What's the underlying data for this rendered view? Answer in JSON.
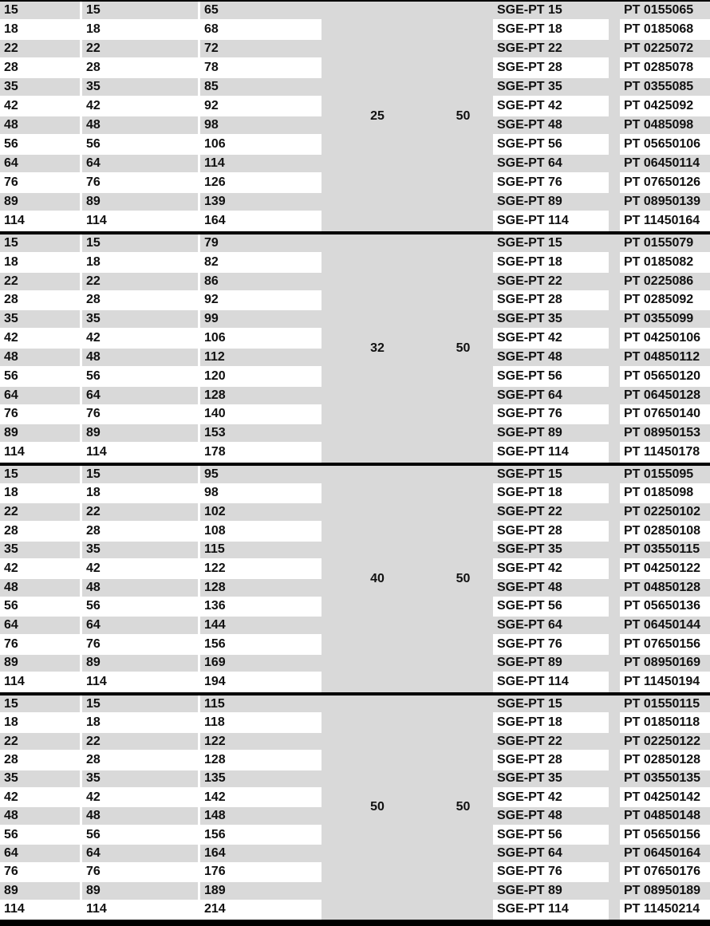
{
  "colors": {
    "row_gray": "#d9d9d9",
    "row_white": "#ffffff",
    "divider_black": "#000000",
    "text": "#111111"
  },
  "table": {
    "blocks": [
      {
        "shared_values": {
          "v1": "25",
          "v2": "50"
        },
        "rows": [
          {
            "c1": "15",
            "c2": "15",
            "c3": "65",
            "name": "SGE-PT 15",
            "code": "PT 0155065"
          },
          {
            "c1": "18",
            "c2": "18",
            "c3": "68",
            "name": "SGE-PT 18",
            "code": "PT 0185068"
          },
          {
            "c1": "22",
            "c2": "22",
            "c3": "72",
            "name": "SGE-PT 22",
            "code": "PT 0225072"
          },
          {
            "c1": "28",
            "c2": "28",
            "c3": "78",
            "name": "SGE-PT 28",
            "code": "PT 0285078"
          },
          {
            "c1": "35",
            "c2": "35",
            "c3": "85",
            "name": "SGE-PT 35",
            "code": "PT 0355085"
          },
          {
            "c1": "42",
            "c2": "42",
            "c3": "92",
            "name": "SGE-PT 42",
            "code": "PT 0425092"
          },
          {
            "c1": "48",
            "c2": "48",
            "c3": "98",
            "name": "SGE-PT 48",
            "code": "PT 0485098"
          },
          {
            "c1": "56",
            "c2": "56",
            "c3": "106",
            "name": "SGE-PT 56",
            "code": "PT 05650106"
          },
          {
            "c1": "64",
            "c2": "64",
            "c3": "114",
            "name": "SGE-PT 64",
            "code": "PT 06450114"
          },
          {
            "c1": "76",
            "c2": "76",
            "c3": "126",
            "name": "SGE-PT 76",
            "code": "PT 07650126"
          },
          {
            "c1": "89",
            "c2": "89",
            "c3": "139",
            "name": "SGE-PT 89",
            "code": "PT 08950139"
          },
          {
            "c1": "114",
            "c2": "114",
            "c3": "164",
            "name": "SGE-PT 114",
            "code": "PT 11450164"
          }
        ]
      },
      {
        "shared_values": {
          "v1": "32",
          "v2": "50"
        },
        "rows": [
          {
            "c1": "15",
            "c2": "15",
            "c3": "79",
            "name": "SGE-PT 15",
            "code": "PT 0155079"
          },
          {
            "c1": "18",
            "c2": "18",
            "c3": "82",
            "name": "SGE-PT 18",
            "code": "PT 0185082"
          },
          {
            "c1": "22",
            "c2": "22",
            "c3": "86",
            "name": "SGE-PT 22",
            "code": "PT 0225086"
          },
          {
            "c1": "28",
            "c2": "28",
            "c3": "92",
            "name": "SGE-PT 28",
            "code": "PT 0285092"
          },
          {
            "c1": "35",
            "c2": "35",
            "c3": "99",
            "name": "SGE-PT 35",
            "code": "PT 0355099"
          },
          {
            "c1": "42",
            "c2": "42",
            "c3": "106",
            "name": "SGE-PT 42",
            "code": "PT 04250106"
          },
          {
            "c1": "48",
            "c2": "48",
            "c3": "112",
            "name": "SGE-PT 48",
            "code": "PT 04850112"
          },
          {
            "c1": "56",
            "c2": "56",
            "c3": "120",
            "name": "SGE-PT 56",
            "code": "PT 05650120"
          },
          {
            "c1": "64",
            "c2": "64",
            "c3": "128",
            "name": "SGE-PT 64",
            "code": "PT 06450128"
          },
          {
            "c1": "76",
            "c2": "76",
            "c3": "140",
            "name": "SGE-PT 76",
            "code": "PT 07650140"
          },
          {
            "c1": "89",
            "c2": "89",
            "c3": "153",
            "name": "SGE-PT 89",
            "code": "PT 08950153"
          },
          {
            "c1": "114",
            "c2": "114",
            "c3": "178",
            "name": "SGE-PT 114",
            "code": "PT 11450178"
          }
        ]
      },
      {
        "shared_values": {
          "v1": "40",
          "v2": "50"
        },
        "rows": [
          {
            "c1": "15",
            "c2": "15",
            "c3": "95",
            "name": "SGE-PT 15",
            "code": "PT 0155095"
          },
          {
            "c1": "18",
            "c2": "18",
            "c3": "98",
            "name": "SGE-PT 18",
            "code": "PT 0185098"
          },
          {
            "c1": "22",
            "c2": "22",
            "c3": "102",
            "name": "SGE-PT 22",
            "code": "PT 02250102"
          },
          {
            "c1": "28",
            "c2": "28",
            "c3": "108",
            "name": "SGE-PT 28",
            "code": "PT 02850108"
          },
          {
            "c1": "35",
            "c2": "35",
            "c3": "115",
            "name": "SGE-PT 35",
            "code": "PT 03550115"
          },
          {
            "c1": "42",
            "c2": "42",
            "c3": "122",
            "name": "SGE-PT 42",
            "code": "PT 04250122"
          },
          {
            "c1": "48",
            "c2": "48",
            "c3": "128",
            "name": "SGE-PT 48",
            "code": "PT 04850128"
          },
          {
            "c1": "56",
            "c2": "56",
            "c3": "136",
            "name": "SGE-PT 56",
            "code": "PT 05650136"
          },
          {
            "c1": "64",
            "c2": "64",
            "c3": "144",
            "name": "SGE-PT 64",
            "code": "PT 06450144"
          },
          {
            "c1": "76",
            "c2": "76",
            "c3": "156",
            "name": "SGE-PT 76",
            "code": "PT 07650156"
          },
          {
            "c1": "89",
            "c2": "89",
            "c3": "169",
            "name": "SGE-PT 89",
            "code": "PT 08950169"
          },
          {
            "c1": "114",
            "c2": "114",
            "c3": "194",
            "name": "SGE-PT 114",
            "code": "PT 11450194"
          }
        ]
      },
      {
        "shared_values": {
          "v1": "50",
          "v2": "50"
        },
        "rows": [
          {
            "c1": "15",
            "c2": "15",
            "c3": "115",
            "name": "SGE-PT 15",
            "code": "PT 01550115"
          },
          {
            "c1": "18",
            "c2": "18",
            "c3": "118",
            "name": "SGE-PT 18",
            "code": "PT 01850118"
          },
          {
            "c1": "22",
            "c2": "22",
            "c3": "122",
            "name": "SGE-PT 22",
            "code": "PT 02250122"
          },
          {
            "c1": "28",
            "c2": "28",
            "c3": "128",
            "name": "SGE-PT 28",
            "code": "PT 02850128"
          },
          {
            "c1": "35",
            "c2": "35",
            "c3": "135",
            "name": "SGE-PT 35",
            "code": "PT 03550135"
          },
          {
            "c1": "42",
            "c2": "42",
            "c3": "142",
            "name": "SGE-PT 42",
            "code": "PT 04250142"
          },
          {
            "c1": "48",
            "c2": "48",
            "c3": "148",
            "name": "SGE-PT 48",
            "code": "PT 04850148"
          },
          {
            "c1": "56",
            "c2": "56",
            "c3": "156",
            "name": "SGE-PT 56",
            "code": "PT 05650156"
          },
          {
            "c1": "64",
            "c2": "64",
            "c3": "164",
            "name": "SGE-PT 64",
            "code": "PT 06450164"
          },
          {
            "c1": "76",
            "c2": "76",
            "c3": "176",
            "name": "SGE-PT 76",
            "code": "PT 07650176"
          },
          {
            "c1": "89",
            "c2": "89",
            "c3": "189",
            "name": "SGE-PT 89",
            "code": "PT 08950189"
          },
          {
            "c1": "114",
            "c2": "114",
            "c3": "214",
            "name": "SGE-PT 114",
            "code": "PT 11450214"
          }
        ]
      }
    ]
  }
}
